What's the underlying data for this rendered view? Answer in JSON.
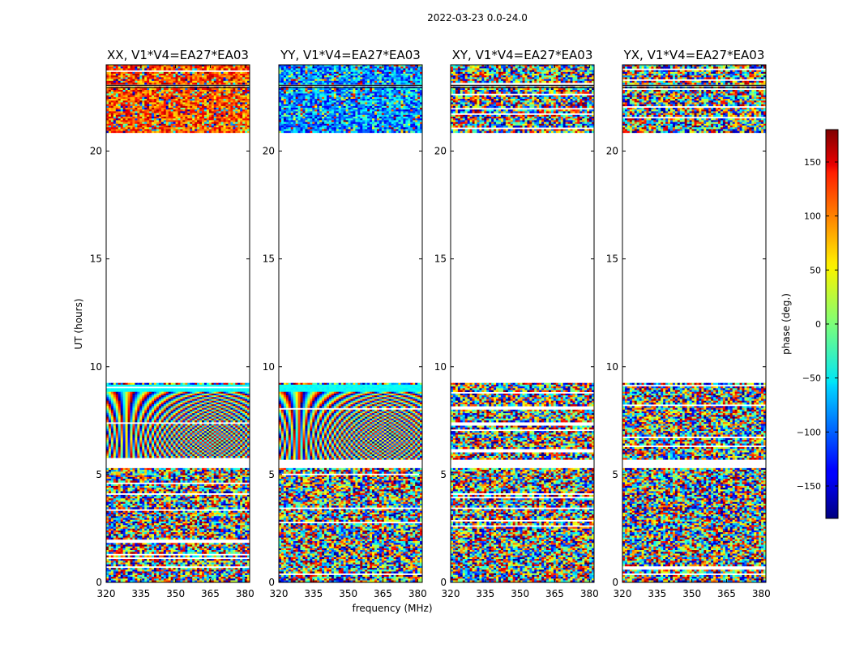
{
  "figure": {
    "suptitle": "2022-03-23 0.0-24.0",
    "xlabel": "frequency (MHz)",
    "ylabel": "UT (hours)",
    "colorbar_label": "phase (deg.)"
  },
  "chart_data": {
    "type": "heatmap",
    "title": "2022-03-23 0.0-24.0",
    "xlabel": "frequency (MHz)",
    "ylabel": "UT (hours)",
    "xlim": [
      320,
      382
    ],
    "ylim": [
      0,
      24
    ],
    "xticks": [
      320,
      335,
      350,
      365,
      380
    ],
    "yticks": [
      0,
      5,
      10,
      15,
      20
    ],
    "colorbar": {
      "label": "phase (deg.)",
      "range": [
        -180,
        180
      ],
      "ticks": [
        150,
        100,
        50,
        0,
        -50,
        -100,
        -150
      ],
      "tick_labels": [
        "150",
        "100",
        "50",
        "0",
        "−50",
        "−100",
        "−150"
      ],
      "colormap": "jet"
    },
    "data_blocks_hours": [
      [
        0.0,
        5.3
      ],
      [
        5.7,
        9.25
      ],
      [
        20.9,
        23.0
      ],
      [
        23.1,
        24.0
      ]
    ],
    "panels": [
      {
        "title": "XX, V1*V4=EA27*EA03",
        "pol": "XX"
      },
      {
        "title": "YY, V1*V4=EA27*EA03",
        "pol": "YY"
      },
      {
        "title": "XY, V1*V4=EA27*EA03",
        "pol": "XY"
      },
      {
        "title": "YX, V1*V4=EA27*EA03",
        "pol": "YX"
      }
    ]
  }
}
